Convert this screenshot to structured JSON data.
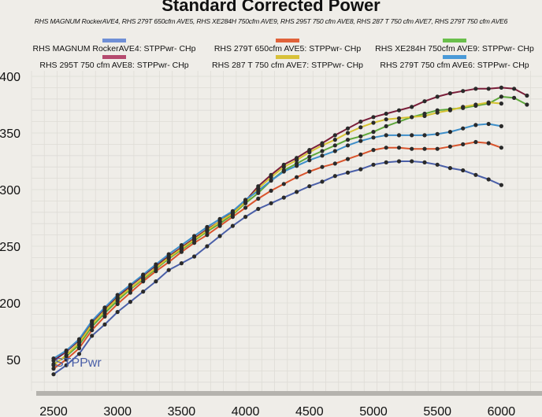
{
  "chart_data": {
    "type": "line",
    "title": "Standard Corrected Power",
    "subtitle": "RHS MAGNUM RockerAVE4, RHS 279T 650cfm AVE5, RHS XE284H 750cfm AVE9, RHS  295T 750 cfm AVE8, RHS 287 T  750 cfm AVE7, RHS 279T 750 cfm AVE6",
    "xlabel": "",
    "ylabel": "",
    "in_plot_label": "STPPwr",
    "xlim": [
      2500,
      6250
    ],
    "ylim": [
      150,
      400
    ],
    "x_ticks": [
      "2500",
      "3000",
      "3500",
      "4000",
      "4500",
      "5000",
      "5500",
      "6000"
    ],
    "y_ticks": [
      "400",
      "350",
      "300",
      "250",
      "200",
      "150"
    ],
    "y_tick_display": [
      "400",
      "350",
      "300",
      "250",
      "200",
      "50"
    ],
    "grid": true,
    "legend_position": "top",
    "series": [
      {
        "name": "RHS MAGNUM RockerAVE4: STPPwr- CHp",
        "color": "#4a5fa8",
        "swatch": "#6f8fd6",
        "x": [
          2500,
          2600,
          2700,
          2800,
          2900,
          3000,
          3100,
          3200,
          3300,
          3400,
          3500,
          3600,
          3700,
          3800,
          3900,
          4000,
          4100,
          4200,
          4300,
          4400,
          4500,
          4600,
          4700,
          4800,
          4900,
          5000,
          5100,
          5200,
          5300,
          5400,
          5500,
          5600,
          5700,
          5800,
          5900,
          6000
        ],
        "y": [
          137,
          145,
          155,
          171,
          181,
          192,
          201,
          210,
          219,
          229,
          235,
          241,
          250,
          259,
          268,
          276,
          283,
          288,
          293,
          298,
          303,
          307,
          312,
          315,
          318,
          322,
          324,
          325,
          325,
          324,
          322,
          319,
          317,
          313,
          309,
          304
        ]
      },
      {
        "name": "RHS 279T 650cfm AVE5: STPPwr- CHp",
        "color": "#d9542c",
        "swatch": "#e0623a",
        "x": [
          2500,
          2600,
          2700,
          2800,
          2900,
          3000,
          3100,
          3200,
          3300,
          3400,
          3500,
          3600,
          3700,
          3800,
          3900,
          4000,
          4100,
          4200,
          4300,
          4400,
          4500,
          4600,
          4700,
          4800,
          4900,
          5000,
          5100,
          5200,
          5300,
          5400,
          5500,
          5600,
          5700,
          5800,
          5900,
          6000
        ],
        "y": [
          142,
          150,
          160,
          176,
          188,
          199,
          209,
          219,
          228,
          236,
          245,
          253,
          260,
          268,
          276,
          284,
          292,
          299,
          305,
          311,
          316,
          320,
          323,
          327,
          331,
          335,
          337,
          337,
          336,
          336,
          336,
          338,
          340,
          342,
          341,
          337
        ]
      },
      {
        "name": "RHS XE284H 750cfm AVE9: STPPwr- CHp",
        "color": "#5fa83c",
        "swatch": "#6abf4b",
        "x": [
          2500,
          2600,
          2700,
          2800,
          2900,
          3000,
          3100,
          3200,
          3300,
          3400,
          3500,
          3600,
          3700,
          3800,
          3900,
          4000,
          4100,
          4200,
          4300,
          4400,
          4500,
          4600,
          4700,
          4800,
          4900,
          5000,
          5100,
          5200,
          5300,
          5400,
          5500,
          5600,
          5700,
          5800,
          5900,
          6000,
          6100,
          6200
        ],
        "y": [
          146,
          153,
          163,
          179,
          191,
          202,
          212,
          221,
          230,
          239,
          247,
          255,
          263,
          270,
          278,
          288,
          297,
          308,
          317,
          323,
          329,
          334,
          339,
          344,
          347,
          351,
          356,
          360,
          364,
          367,
          370,
          371,
          372,
          374,
          376,
          382,
          381,
          375
        ]
      },
      {
        "name": "RHS  295T 750 cfm AVE8: STPPwr- CHp",
        "color": "#7a1f3a",
        "swatch": "#b54a6e",
        "x": [
          2500,
          2600,
          2700,
          2800,
          2900,
          3000,
          3100,
          3200,
          3300,
          3400,
          3500,
          3600,
          3700,
          3800,
          3900,
          4000,
          4100,
          4200,
          4300,
          4400,
          4500,
          4600,
          4700,
          4800,
          4900,
          5000,
          5100,
          5200,
          5300,
          5400,
          5500,
          5600,
          5700,
          5800,
          5900,
          6000,
          6100,
          6200
        ],
        "y": [
          149,
          157,
          167,
          183,
          195,
          205,
          215,
          224,
          233,
          241,
          249,
          257,
          265,
          272,
          280,
          290,
          303,
          313,
          322,
          328,
          335,
          341,
          348,
          354,
          360,
          364,
          367,
          370,
          373,
          378,
          382,
          385,
          387,
          389,
          389,
          390,
          389,
          383
        ]
      },
      {
        "name": "RHS 287 T  750 cfm AVE7: STPPwr- CHp",
        "color": "#d6c232",
        "swatch": "#d8c13a",
        "x": [
          2500,
          2600,
          2700,
          2800,
          2900,
          3000,
          3100,
          3200,
          3300,
          3400,
          3500,
          3600,
          3700,
          3800,
          3900,
          4000,
          4100,
          4200,
          4300,
          4400,
          4500,
          4600,
          4700,
          4800,
          4900,
          5000,
          5100,
          5200,
          5300,
          5400,
          5500,
          5600,
          5700,
          5800,
          5900,
          6000
        ],
        "y": [
          145,
          154,
          165,
          181,
          193,
          204,
          213,
          222,
          231,
          240,
          248,
          256,
          264,
          272,
          279,
          289,
          301,
          311,
          320,
          326,
          333,
          339,
          344,
          350,
          355,
          359,
          362,
          363,
          364,
          365,
          368,
          370,
          373,
          375,
          377,
          376
        ]
      },
      {
        "name": "RHS 279T 750 cfm AVE6: STPPwr- CHp",
        "color": "#3e8fc9",
        "swatch": "#4a9ad8",
        "x": [
          2500,
          2600,
          2700,
          2800,
          2900,
          3000,
          3100,
          3200,
          3300,
          3400,
          3500,
          3600,
          3700,
          3800,
          3900,
          4000,
          4100,
          4200,
          4300,
          4400,
          4500,
          4600,
          4700,
          4800,
          4900,
          5000,
          5100,
          5200,
          5300,
          5400,
          5500,
          5600,
          5700,
          5800,
          5900,
          6000
        ],
        "y": [
          151,
          158,
          168,
          184,
          196,
          207,
          216,
          225,
          234,
          243,
          251,
          259,
          267,
          274,
          281,
          291,
          299,
          308,
          316,
          321,
          326,
          330,
          334,
          339,
          343,
          346,
          348,
          348,
          348,
          348,
          349,
          351,
          354,
          357,
          358,
          356
        ]
      }
    ]
  }
}
